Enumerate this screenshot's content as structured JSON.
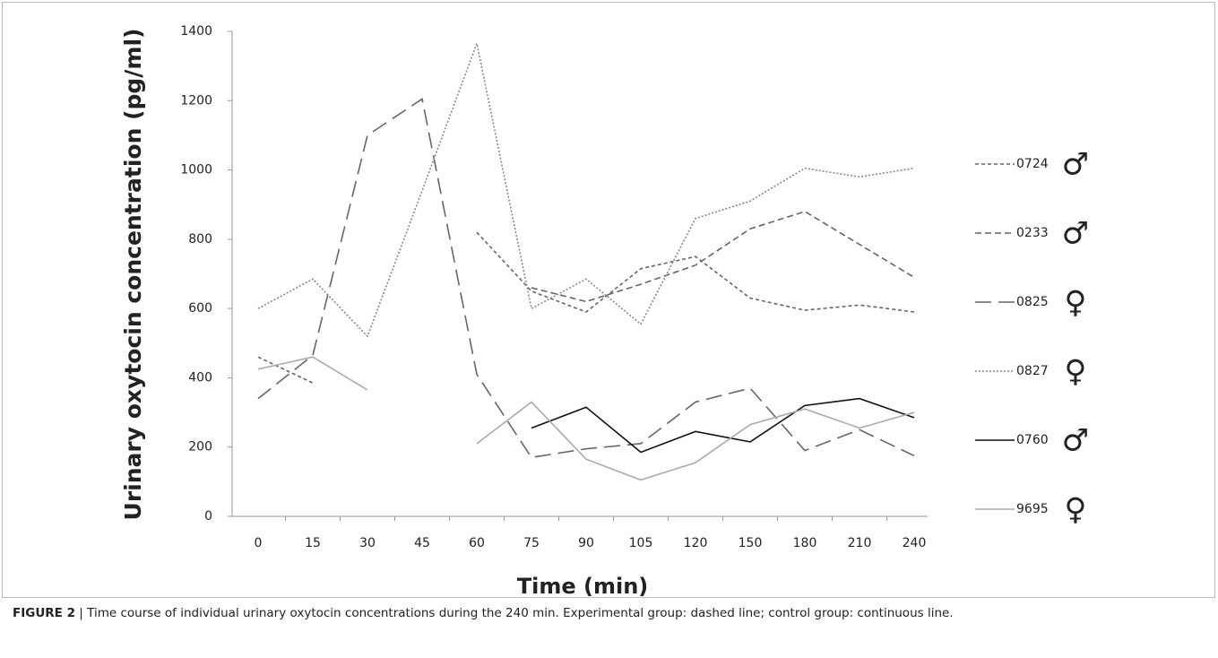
{
  "chart_data": {
    "type": "line",
    "y_label": "Urinary oxytocin concentration (pg/ml)",
    "x_label": "Time (min)",
    "categories": [
      "0",
      "15",
      "30",
      "45",
      "60",
      "75",
      "90",
      "105",
      "120",
      "150",
      "180",
      "210",
      "240"
    ],
    "ylim": [
      0,
      1400
    ],
    "yticks": [
      0,
      200,
      400,
      600,
      800,
      1000,
      1200,
      1400
    ],
    "series": [
      {
        "name": "0724",
        "sex": "♂",
        "color": "#666666",
        "dash": "4,3",
        "values": [
          460,
          385,
          null,
          null,
          820,
          650,
          590,
          715,
          750,
          630,
          595,
          610,
          590
        ]
      },
      {
        "name": "0233",
        "sex": "♂",
        "color": "#666666",
        "dash": "7,4",
        "values": [
          null,
          null,
          null,
          null,
          null,
          660,
          620,
          670,
          725,
          830,
          880,
          785,
          690
        ]
      },
      {
        "name": "0825",
        "sex": "♀",
        "color": "#666666",
        "dash": "18,8",
        "values": [
          340,
          465,
          1100,
          1205,
          410,
          170,
          195,
          210,
          330,
          370,
          190,
          250,
          175
        ]
      },
      {
        "name": "0827",
        "sex": "♀",
        "color": "#888888",
        "dash": "2,2",
        "values": [
          600,
          685,
          520,
          940,
          1365,
          600,
          685,
          555,
          860,
          910,
          1005,
          980,
          1005
        ]
      },
      {
        "name": "0760",
        "sex": "♂",
        "color": "#111111",
        "dash": "none",
        "values": [
          null,
          null,
          null,
          null,
          null,
          255,
          315,
          185,
          245,
          215,
          320,
          340,
          285
        ]
      },
      {
        "name": "9695",
        "sex": "♀",
        "color": "#aaaaaa",
        "dash": "none",
        "values": [
          425,
          460,
          365,
          null,
          210,
          330,
          165,
          105,
          155,
          265,
          310,
          255,
          300
        ]
      }
    ],
    "caption_label": "FIGURE 2",
    "caption": "| Time course of individual urinary oxytocin concentrations during the 240 min. Experimental group: dashed line; control group: continuous line."
  }
}
